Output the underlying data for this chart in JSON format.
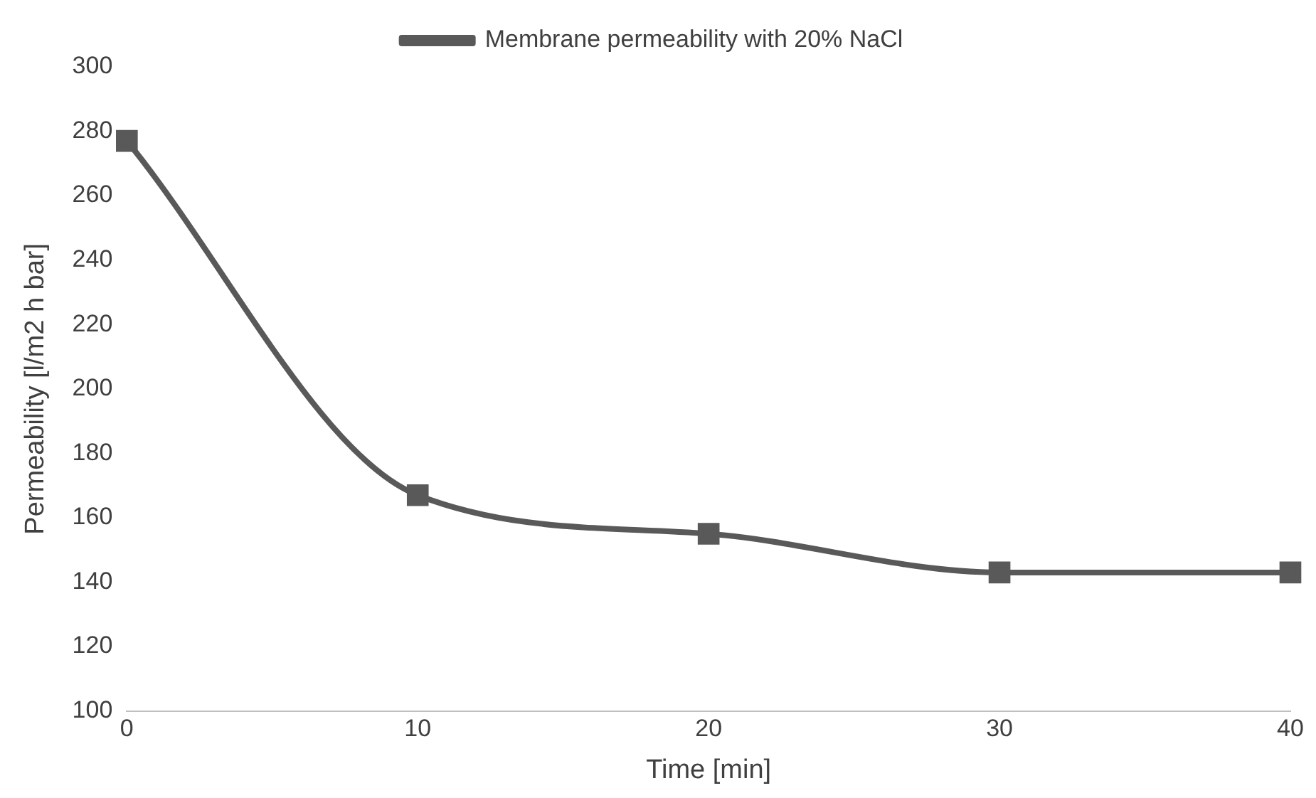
{
  "chart_data": {
    "type": "line",
    "xlabel": "Time [min]",
    "ylabel": "Permeability [l/m2 h bar]",
    "x": [
      0,
      10,
      20,
      30,
      40
    ],
    "series": [
      {
        "name": "Membrane permeability with 20% NaCl",
        "color": "#595959",
        "values": [
          277,
          167,
          155,
          143,
          143
        ]
      }
    ],
    "xlim": [
      0,
      40
    ],
    "xticks": [
      0,
      10,
      20,
      30,
      40
    ],
    "ylim": [
      100,
      300
    ],
    "yticks": [
      100,
      120,
      140,
      160,
      180,
      200,
      220,
      240,
      260,
      280,
      300
    ],
    "grid": false,
    "legend": "top",
    "marker": "square",
    "line_style": "solid"
  }
}
